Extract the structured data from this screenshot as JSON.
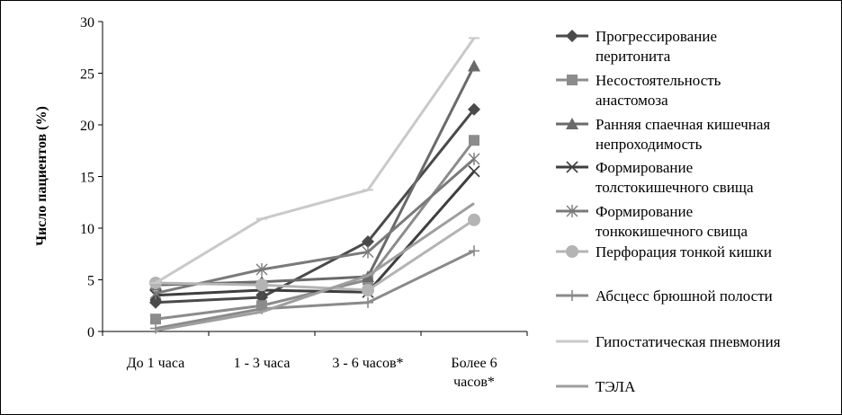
{
  "chart_data": {
    "type": "line",
    "title": "",
    "xlabel": "",
    "ylabel": "Число пациентов (%)",
    "ylim": [
      0,
      30
    ],
    "yticks": [
      0,
      5,
      10,
      15,
      20,
      25,
      30
    ],
    "grid": false,
    "legend_position": "right",
    "categories": [
      [
        "До 1 часа"
      ],
      [
        "1 - 3 часа"
      ],
      [
        "3 - 6 часов*"
      ],
      [
        "Более 6",
        "часов*"
      ]
    ],
    "series": [
      {
        "name": [
          "Прогрессирование",
          "перитонита"
        ],
        "marker": "diamond",
        "color": "#4a4a4a",
        "values": [
          2.8,
          3.3,
          8.7,
          21.5
        ]
      },
      {
        "name": [
          "Несостоятельность",
          "анастомоза"
        ],
        "marker": "square",
        "color": "#8c8c8c",
        "values": [
          1.2,
          2.5,
          5.0,
          18.5
        ]
      },
      {
        "name": [
          "Ранняя спаечная кишечная",
          "непроходимость"
        ],
        "marker": "triangle",
        "color": "#6a6a6a",
        "values": [
          4.5,
          4.8,
          5.3,
          25.7
        ]
      },
      {
        "name": [
          "Формирование",
          "толстокишечного свища"
        ],
        "marker": "x",
        "color": "#3e3e3e",
        "values": [
          3.5,
          4.0,
          3.8,
          15.5
        ]
      },
      {
        "name": [
          "Формирование",
          "тонкокишечного свища"
        ],
        "marker": "star",
        "color": "#7a7a7a",
        "values": [
          3.7,
          6.0,
          7.7,
          16.7
        ]
      },
      {
        "name": [
          "Перфорация тонкой кишки"
        ],
        "marker": "circle",
        "color": "#b4b4b4",
        "values": [
          4.7,
          4.5,
          4.0,
          10.8
        ]
      },
      {
        "name": [
          "Абсцесс брюшной полости"
        ],
        "marker": "plus",
        "color": "#8a8a8a",
        "values": [
          0.3,
          2.2,
          2.8,
          7.8
        ]
      },
      {
        "name": [
          "Гипостатическая пневмония"
        ],
        "marker": "dash",
        "color": "#c9c9c9",
        "values": [
          4.7,
          10.9,
          13.7,
          28.4
        ]
      },
      {
        "name": [
          "ТЭЛА"
        ],
        "marker": "none",
        "color": "#9e9e9e",
        "values": [
          0.1,
          1.9,
          5.4,
          12.4
        ]
      }
    ]
  }
}
